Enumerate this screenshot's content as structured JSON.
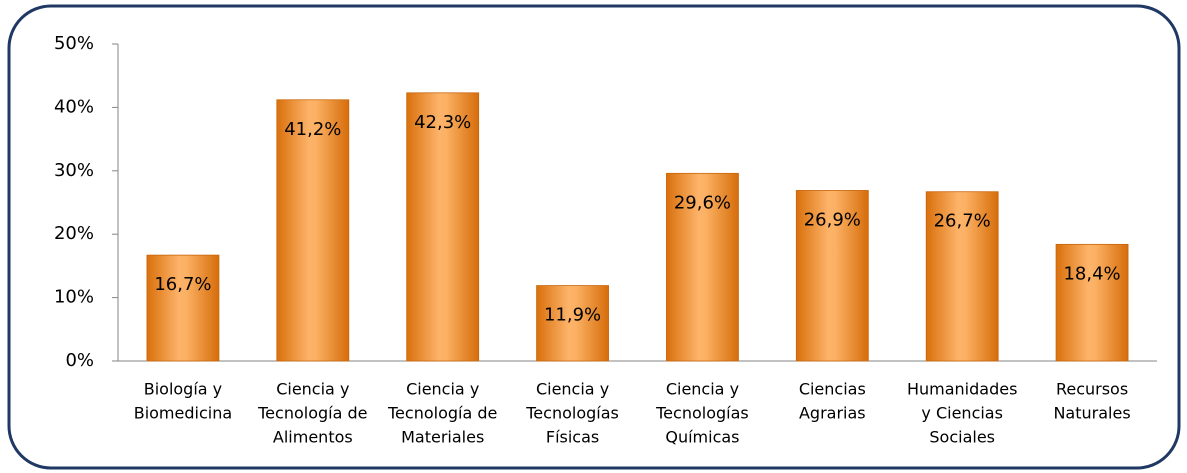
{
  "chart_data": {
    "type": "bar",
    "categories": [
      [
        "Biología y",
        "Biomedicina"
      ],
      [
        "Ciencia y",
        "Tecnología de",
        "Alimentos"
      ],
      [
        "Ciencia y",
        "Tecnología de",
        "Materiales"
      ],
      [
        "Ciencia y",
        "Tecnologías",
        "Físicas"
      ],
      [
        "Ciencia y",
        "Tecnologías",
        "Químicas"
      ],
      [
        "Ciencias",
        "Agrarias"
      ],
      [
        "Humanidades",
        "y Ciencias",
        "Sociales"
      ],
      [
        "Recursos",
        "Naturales"
      ]
    ],
    "values": [
      16.7,
      41.2,
      42.3,
      11.9,
      29.6,
      26.9,
      26.7,
      18.4
    ],
    "value_labels": [
      "16,7%",
      "41,2%",
      "42,3%",
      "11,9%",
      "29,6%",
      "26,9%",
      "26,7%",
      "18,4%"
    ],
    "color": "#f39a3a",
    "ylim": [
      0,
      50
    ],
    "yticks": [
      {
        "value": 0,
        "label": "0%"
      },
      {
        "value": 10,
        "label": "10%"
      },
      {
        "value": 20,
        "label": "20%"
      },
      {
        "value": 30,
        "label": "30%"
      },
      {
        "value": 40,
        "label": "40%"
      },
      {
        "value": 50,
        "label": "50%"
      }
    ],
    "grid": false
  }
}
